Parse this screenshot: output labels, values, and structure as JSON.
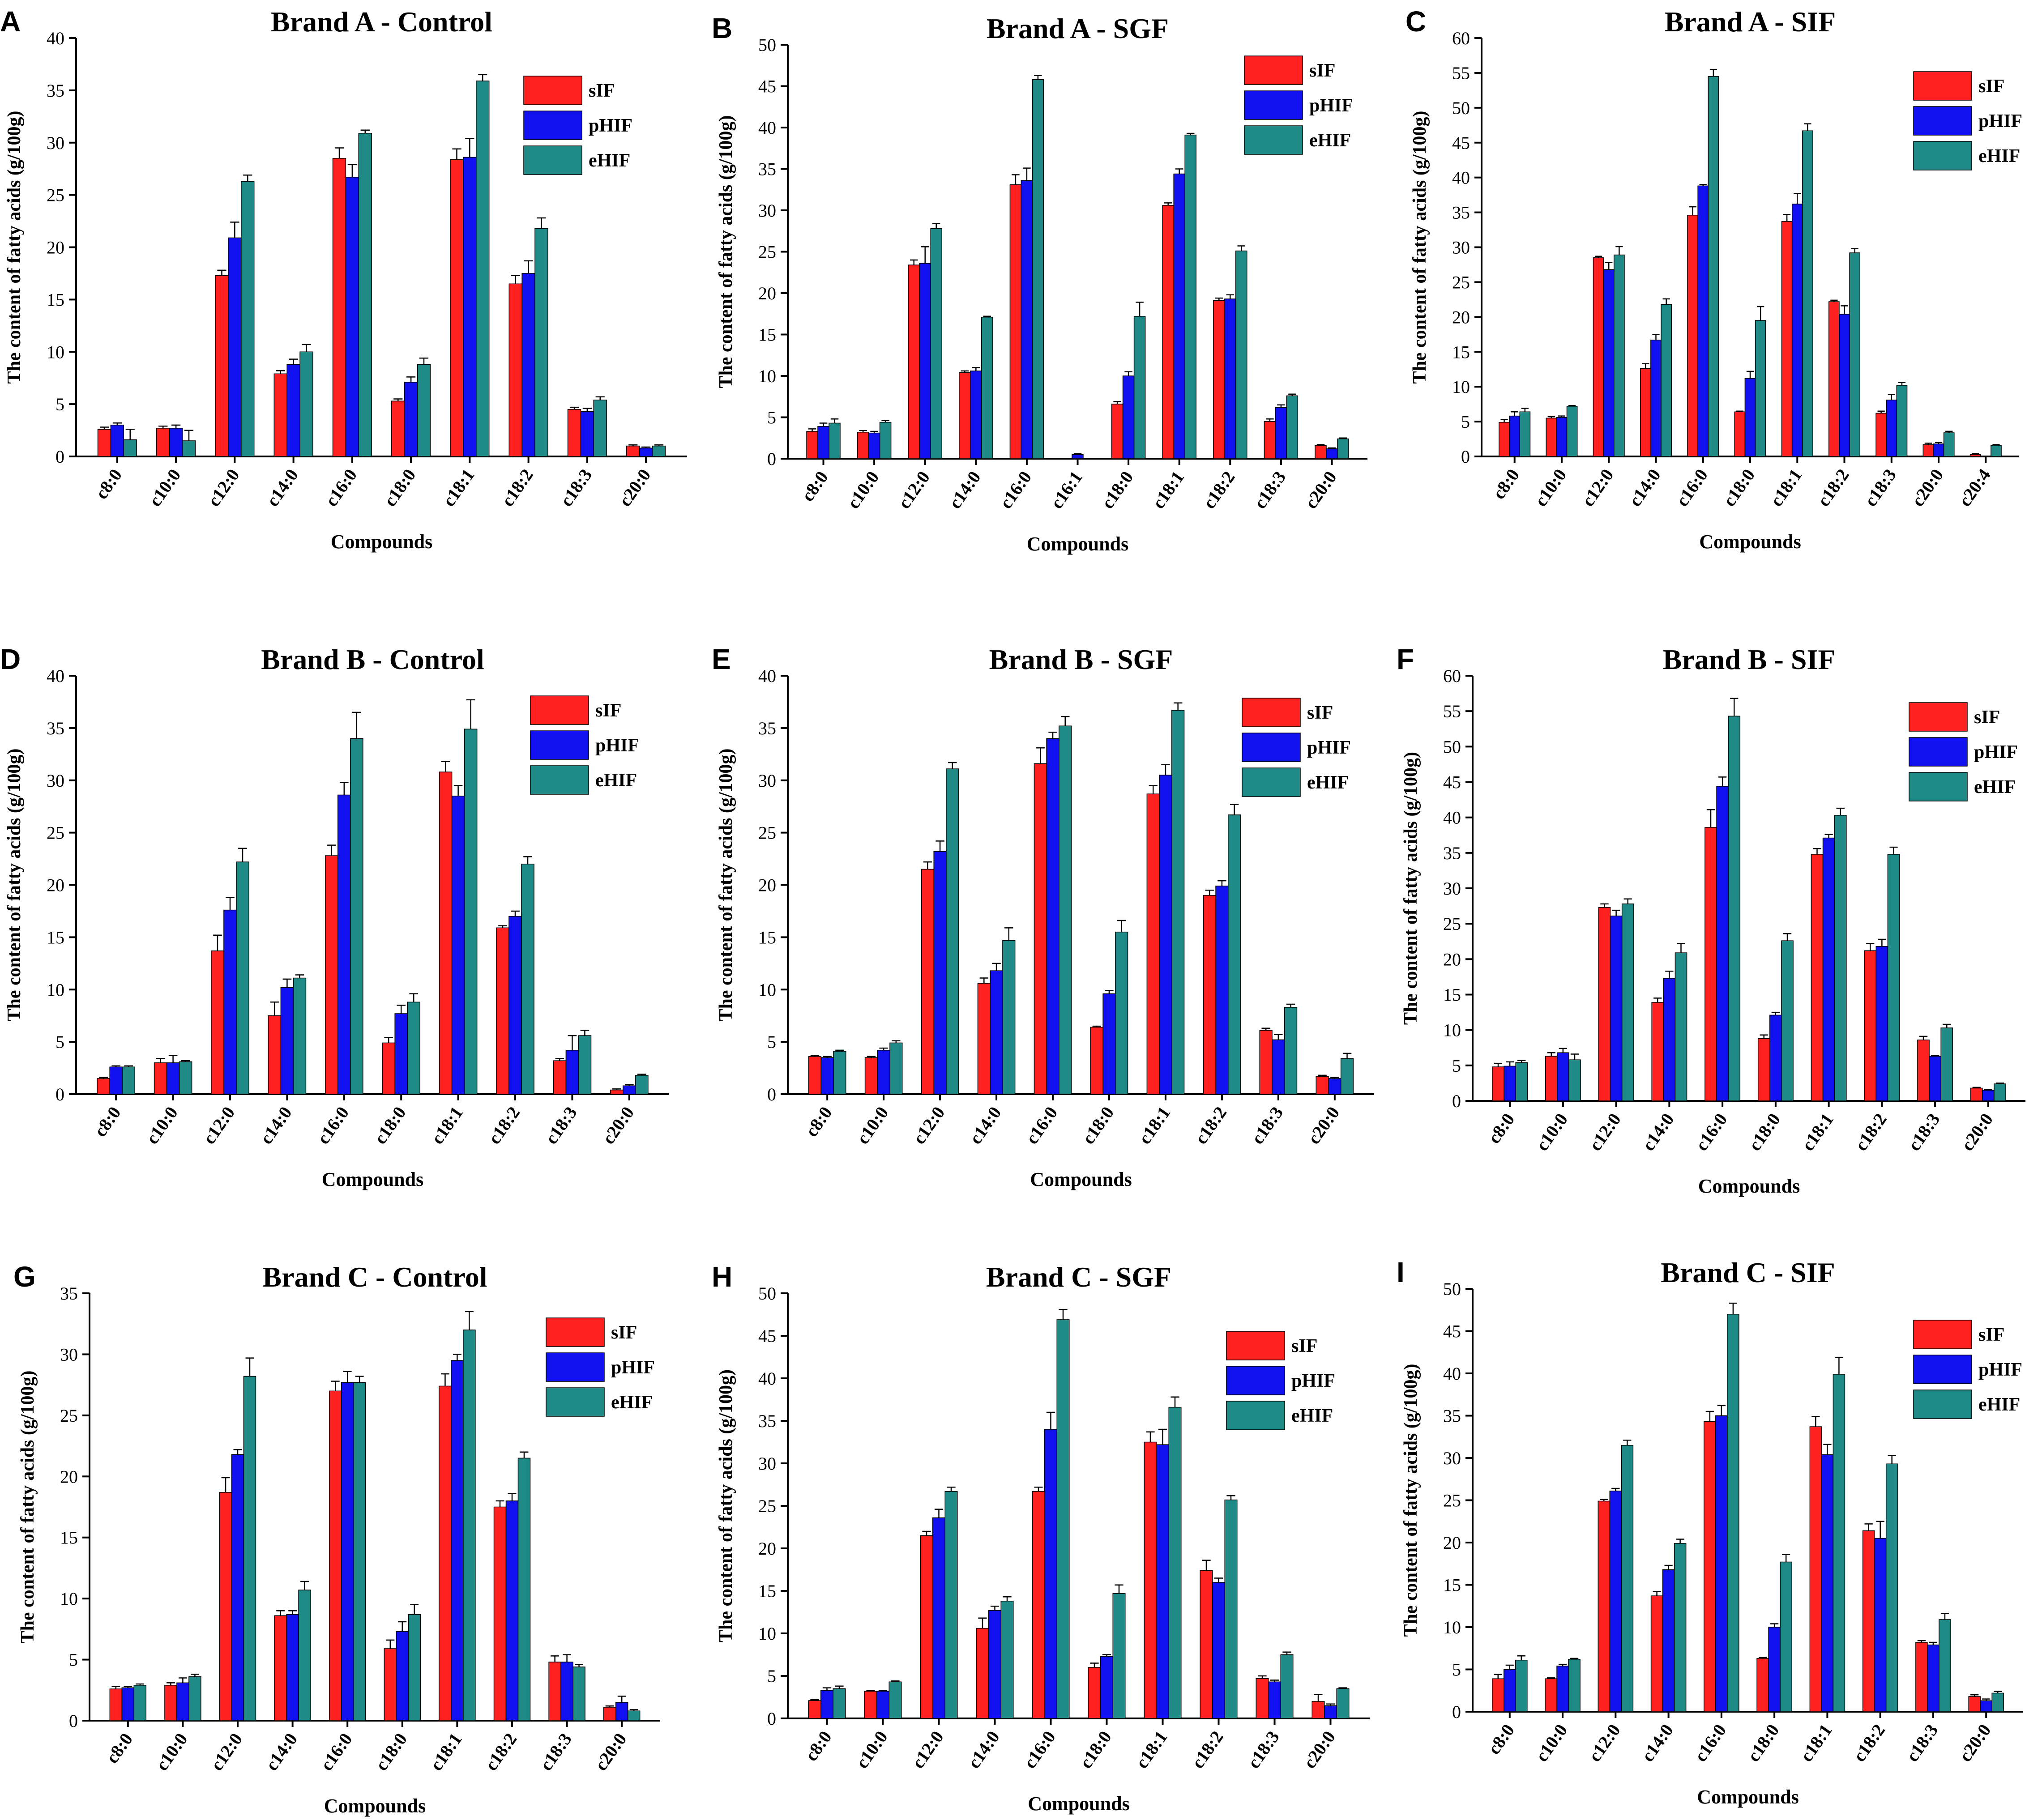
{
  "figure": {
    "series_colors": {
      "sIF": "#ff2020",
      "pHIF": "#1010f0",
      "eHIF": "#1f8a86"
    }
  },
  "chart_data": [
    {
      "panel": "A",
      "type": "bar",
      "title": "Brand A - Control",
      "xlabel": "Compounds",
      "ylabel": "The content of fatty acids (g/100g)",
      "ylim": [
        0,
        40
      ],
      "yticks": [
        0,
        5,
        10,
        15,
        20,
        25,
        30,
        35,
        40
      ],
      "categories": [
        "c8:0",
        "c10:0",
        "c12:0",
        "c14:0",
        "c16:0",
        "c18:0",
        "c18:1",
        "c18:2",
        "c18:3",
        "c20:0"
      ],
      "series": [
        {
          "name": "sIF",
          "values": [
            2.6,
            2.7,
            17.3,
            7.9,
            28.5,
            5.3,
            28.4,
            16.5,
            4.5,
            1.0
          ],
          "errors": [
            0.2,
            0.2,
            0.5,
            0.3,
            1.0,
            0.2,
            1.0,
            0.8,
            0.2,
            0.1
          ]
        },
        {
          "name": "pHIF",
          "values": [
            3.0,
            2.7,
            20.9,
            8.8,
            26.7,
            7.1,
            28.6,
            17.5,
            4.3,
            0.8
          ],
          "errors": [
            0.2,
            0.3,
            1.5,
            0.5,
            1.2,
            0.5,
            1.8,
            1.2,
            0.3,
            0.1
          ]
        },
        {
          "name": "eHIF",
          "values": [
            1.6,
            1.5,
            26.3,
            10.0,
            30.9,
            8.8,
            35.9,
            21.8,
            5.4,
            1.0
          ],
          "errors": [
            1.0,
            1.0,
            0.6,
            0.7,
            0.3,
            0.6,
            0.6,
            1.0,
            0.3,
            0.1
          ]
        }
      ]
    },
    {
      "panel": "B",
      "type": "bar",
      "title": "Brand A - SGF",
      "xlabel": "Compounds",
      "ylabel": "The content of fatty acids (g/100g)",
      "ylim": [
        0,
        50
      ],
      "yticks": [
        0,
        5,
        10,
        15,
        20,
        25,
        30,
        35,
        40,
        45,
        50
      ],
      "categories": [
        "c8:0",
        "c10:0",
        "c12:0",
        "c14:0",
        "c16:0",
        "c16:1",
        "c18:0",
        "c18:1",
        "c18:2",
        "c18:3",
        "c20:0"
      ],
      "series": [
        {
          "name": "sIF",
          "values": [
            3.3,
            3.2,
            23.4,
            10.4,
            33.1,
            0,
            6.6,
            30.6,
            19.1,
            4.5,
            1.6
          ],
          "errors": [
            0.3,
            0.2,
            0.6,
            0.2,
            1.2,
            0,
            0.3,
            0.3,
            0.3,
            0.3,
            0.1
          ]
        },
        {
          "name": "pHIF",
          "values": [
            3.9,
            3.1,
            23.6,
            10.6,
            33.6,
            0.5,
            10.0,
            34.4,
            19.3,
            6.2,
            1.2
          ],
          "errors": [
            0.4,
            0.2,
            2.0,
            0.4,
            1.5,
            0.1,
            0.5,
            0.6,
            0.5,
            0.3,
            0.1
          ]
        },
        {
          "name": "eHIF",
          "values": [
            4.3,
            4.4,
            27.8,
            17.1,
            45.8,
            0,
            17.2,
            39.1,
            25.1,
            7.6,
            2.4
          ],
          "errors": [
            0.5,
            0.2,
            0.6,
            0.1,
            0.5,
            0,
            1.7,
            0.2,
            0.6,
            0.2,
            0.1
          ]
        }
      ]
    },
    {
      "panel": "C",
      "type": "bar",
      "title": "Brand A - SIF",
      "xlabel": "Compounds",
      "ylabel": "The content of fatty acids (g/100g)",
      "ylim": [
        0,
        60
      ],
      "yticks": [
        0,
        5,
        10,
        15,
        20,
        25,
        30,
        35,
        40,
        45,
        50,
        55,
        60
      ],
      "categories": [
        "c8:0",
        "c10:0",
        "c12:0",
        "c14:0",
        "c16:0",
        "c18:0",
        "c18:1",
        "c18:2",
        "c18:3",
        "c20:0",
        "c20:4"
      ],
      "series": [
        {
          "name": "sIF",
          "values": [
            4.9,
            5.5,
            28.5,
            12.6,
            34.6,
            6.4,
            33.7,
            22.2,
            6.2,
            1.7,
            0.3
          ],
          "errors": [
            0.4,
            0.2,
            0.2,
            0.7,
            1.2,
            0.1,
            1.0,
            0.2,
            0.3,
            0.2,
            0.1
          ]
        },
        {
          "name": "pHIF",
          "values": [
            5.8,
            5.6,
            26.8,
            16.7,
            38.8,
            11.2,
            36.2,
            20.4,
            8.1,
            1.8,
            0
          ],
          "errors": [
            0.6,
            0.2,
            1.0,
            0.8,
            0.2,
            1.0,
            1.5,
            1.2,
            0.8,
            0.2,
            0
          ]
        },
        {
          "name": "eHIF",
          "values": [
            6.4,
            7.2,
            28.9,
            21.8,
            54.5,
            19.5,
            46.7,
            29.2,
            10.2,
            3.4,
            1.6
          ],
          "errors": [
            0.5,
            0.1,
            1.2,
            0.8,
            1.0,
            2.0,
            1.0,
            0.6,
            0.4,
            0.2,
            0.1
          ]
        }
      ]
    },
    {
      "panel": "D",
      "type": "bar",
      "title": "Brand B - Control",
      "xlabel": "Compounds",
      "ylabel": "The content of fatty acids (g/100g)",
      "ylim": [
        0,
        40
      ],
      "yticks": [
        0,
        5,
        10,
        15,
        20,
        25,
        30,
        35,
        40
      ],
      "categories": [
        "c8:0",
        "c10:0",
        "c12:0",
        "c14:0",
        "c16:0",
        "c18:0",
        "c18:1",
        "c18:2",
        "c18:3",
        "c20:0"
      ],
      "series": [
        {
          "name": "sIF",
          "values": [
            1.5,
            3.0,
            13.7,
            7.5,
            22.8,
            4.9,
            30.8,
            15.9,
            3.2,
            0.4
          ],
          "errors": [
            0.1,
            0.4,
            1.5,
            1.3,
            1.0,
            0.5,
            1.0,
            0.2,
            0.2,
            0.1
          ]
        },
        {
          "name": "pHIF",
          "values": [
            2.6,
            3.0,
            17.6,
            10.2,
            28.6,
            7.7,
            28.5,
            17.0,
            4.2,
            0.8
          ],
          "errors": [
            0.1,
            0.7,
            1.2,
            0.8,
            1.2,
            0.8,
            1.0,
            0.5,
            1.4,
            0.1
          ]
        },
        {
          "name": "eHIF",
          "values": [
            2.6,
            3.1,
            22.2,
            11.1,
            34.0,
            8.8,
            34.9,
            22.0,
            5.6,
            1.8
          ],
          "errors": [
            0.1,
            0.1,
            1.3,
            0.3,
            2.5,
            0.8,
            2.8,
            0.7,
            0.5,
            0.1
          ]
        }
      ]
    },
    {
      "panel": "E",
      "type": "bar",
      "title": "Brand B - SGF",
      "xlabel": "Compounds",
      "ylabel": "The content of fatty acids (g/100g)",
      "ylim": [
        0,
        40
      ],
      "yticks": [
        0,
        5,
        10,
        15,
        20,
        25,
        30,
        35,
        40
      ],
      "categories": [
        "c8:0",
        "c10:0",
        "c12:0",
        "c14:0",
        "c16:0",
        "c18:0",
        "c18:1",
        "c18:2",
        "c18:3",
        "c20:0"
      ],
      "series": [
        {
          "name": "sIF",
          "values": [
            3.6,
            3.5,
            21.5,
            10.6,
            31.6,
            6.4,
            28.7,
            19.0,
            6.1,
            1.7
          ],
          "errors": [
            0.1,
            0.1,
            0.7,
            0.5,
            1.5,
            0.1,
            0.8,
            0.5,
            0.2,
            0.1
          ]
        },
        {
          "name": "pHIF",
          "values": [
            3.5,
            4.2,
            23.2,
            11.8,
            34.0,
            9.6,
            30.5,
            19.9,
            5.2,
            1.5
          ],
          "errors": [
            0.1,
            0.2,
            1.0,
            0.7,
            0.6,
            0.3,
            1.0,
            0.5,
            0.5,
            0.1
          ]
        },
        {
          "name": "eHIF",
          "values": [
            4.1,
            4.9,
            31.1,
            14.7,
            35.2,
            15.5,
            36.7,
            26.7,
            8.3,
            3.4
          ],
          "errors": [
            0.1,
            0.2,
            0.6,
            1.2,
            0.9,
            1.1,
            0.7,
            1.0,
            0.3,
            0.5
          ]
        }
      ]
    },
    {
      "panel": "F",
      "type": "bar",
      "title": "Brand B - SIF",
      "xlabel": "Compounds",
      "ylabel": "The content of fatty acids (g/100g)",
      "ylim": [
        0,
        60
      ],
      "yticks": [
        0,
        5,
        10,
        15,
        20,
        25,
        30,
        35,
        40,
        45,
        50,
        55,
        60
      ],
      "categories": [
        "c8:0",
        "c10:0",
        "c12:0",
        "c14:0",
        "c16:0",
        "c18:0",
        "c18:1",
        "c18:2",
        "c18:3",
        "c20:0"
      ],
      "series": [
        {
          "name": "sIF",
          "values": [
            4.8,
            6.3,
            27.3,
            13.9,
            38.6,
            8.8,
            34.8,
            21.2,
            8.6,
            1.8
          ],
          "errors": [
            0.5,
            0.5,
            0.5,
            0.6,
            2.5,
            0.5,
            0.8,
            1.0,
            0.5,
            0.1
          ]
        },
        {
          "name": "pHIF",
          "values": [
            4.9,
            6.8,
            26.1,
            17.3,
            44.4,
            12.1,
            37.1,
            21.8,
            6.3,
            1.5
          ],
          "errors": [
            0.6,
            0.6,
            0.8,
            1.0,
            1.3,
            0.4,
            0.5,
            1.0,
            0.1,
            0.1
          ]
        },
        {
          "name": "eHIF",
          "values": [
            5.4,
            5.8,
            27.8,
            20.9,
            54.3,
            22.6,
            40.3,
            34.8,
            10.3,
            2.4
          ],
          "errors": [
            0.3,
            0.8,
            0.7,
            1.3,
            2.5,
            1.0,
            1.0,
            1.0,
            0.5,
            0.1
          ]
        }
      ]
    },
    {
      "panel": "G",
      "type": "bar",
      "title": "Brand C - Control",
      "xlabel": "Compounds",
      "ylabel": "The content of fatty acids (g/100g)",
      "ylim": [
        0,
        35
      ],
      "yticks": [
        0,
        5,
        10,
        15,
        20,
        25,
        30,
        35
      ],
      "categories": [
        "c8:0",
        "c10:0",
        "c12:0",
        "c14:0",
        "c16:0",
        "c18:0",
        "c18:1",
        "c18:2",
        "c18:3",
        "c20:0"
      ],
      "series": [
        {
          "name": "sIF",
          "values": [
            2.6,
            2.9,
            18.7,
            8.6,
            27.0,
            5.9,
            27.4,
            17.5,
            4.8,
            1.1
          ],
          "errors": [
            0.2,
            0.2,
            1.2,
            0.4,
            0.8,
            0.7,
            1.0,
            0.5,
            0.5,
            0.1
          ]
        },
        {
          "name": "pHIF",
          "values": [
            2.7,
            3.1,
            21.8,
            8.7,
            27.7,
            7.3,
            29.5,
            18.0,
            4.8,
            1.5
          ],
          "errors": [
            0.1,
            0.4,
            0.4,
            0.3,
            0.9,
            0.8,
            0.5,
            0.6,
            0.6,
            0.5
          ]
        },
        {
          "name": "eHIF",
          "values": [
            2.9,
            3.6,
            28.2,
            10.7,
            27.7,
            8.7,
            32.0,
            21.5,
            4.4,
            0.8
          ],
          "errors": [
            0.1,
            0.2,
            1.5,
            0.7,
            0.5,
            0.8,
            1.5,
            0.5,
            0.2,
            0.1
          ]
        }
      ]
    },
    {
      "panel": "H",
      "type": "bar",
      "title": "Brand C - SGF",
      "xlabel": "Compounds",
      "ylabel": "The content of fatty acids (g/100g)",
      "ylim": [
        0,
        50
      ],
      "yticks": [
        0,
        5,
        10,
        15,
        20,
        25,
        30,
        35,
        40,
        45,
        50
      ],
      "categories": [
        "c8:0",
        "c10:0",
        "c12:0",
        "c14:0",
        "c16:0",
        "c18:0",
        "c18:1",
        "c18:2",
        "c18:3",
        "c20:0"
      ],
      "series": [
        {
          "name": "sIF",
          "values": [
            2.1,
            3.2,
            21.5,
            10.6,
            26.7,
            6.0,
            32.5,
            17.4,
            4.7,
            2.0
          ],
          "errors": [
            0.1,
            0.1,
            0.5,
            1.2,
            0.5,
            0.5,
            1.2,
            1.2,
            0.3,
            0.8
          ]
        },
        {
          "name": "pHIF",
          "values": [
            3.3,
            3.2,
            23.6,
            12.7,
            34.0,
            7.3,
            32.2,
            16.0,
            4.3,
            1.5
          ],
          "errors": [
            0.3,
            0.1,
            1.0,
            0.5,
            2.0,
            0.2,
            1.8,
            0.5,
            0.2,
            0.2
          ]
        },
        {
          "name": "eHIF",
          "values": [
            3.5,
            4.3,
            26.7,
            13.8,
            46.9,
            14.7,
            36.6,
            25.7,
            7.5,
            3.5
          ],
          "errors": [
            0.3,
            0.1,
            0.5,
            0.5,
            1.2,
            1.0,
            1.2,
            0.5,
            0.3,
            0.1
          ]
        }
      ]
    },
    {
      "panel": "I",
      "type": "bar",
      "title": "Brand C - SIF",
      "xlabel": "Compounds",
      "ylabel": "The content of fatty acids (g/100g)",
      "ylim": [
        0,
        50
      ],
      "yticks": [
        0,
        5,
        10,
        15,
        20,
        25,
        30,
        35,
        40,
        45,
        50
      ],
      "categories": [
        "c8:0",
        "c10:0",
        "c12:0",
        "c14:0",
        "c16:0",
        "c18:0",
        "c18:1",
        "c18:2",
        "c18:3",
        "c20:0"
      ],
      "series": [
        {
          "name": "sIF",
          "values": [
            3.9,
            3.9,
            24.9,
            13.7,
            34.3,
            6.3,
            33.7,
            21.4,
            8.2,
            1.8
          ],
          "errors": [
            0.5,
            0.1,
            0.2,
            0.5,
            1.2,
            0.1,
            1.2,
            0.8,
            0.2,
            0.2
          ]
        },
        {
          "name": "pHIF",
          "values": [
            5.0,
            5.4,
            26.1,
            16.8,
            35.0,
            10.0,
            30.4,
            20.5,
            7.9,
            1.3
          ],
          "errors": [
            0.5,
            0.2,
            0.3,
            0.5,
            1.2,
            0.4,
            1.2,
            2.0,
            0.3,
            0.2
          ]
        },
        {
          "name": "eHIF",
          "values": [
            6.1,
            6.2,
            31.5,
            19.9,
            47.0,
            17.7,
            39.9,
            29.3,
            10.9,
            2.2
          ],
          "errors": [
            0.5,
            0.1,
            0.6,
            0.5,
            1.3,
            0.9,
            2.0,
            1.0,
            0.7,
            0.2
          ]
        }
      ]
    }
  ]
}
